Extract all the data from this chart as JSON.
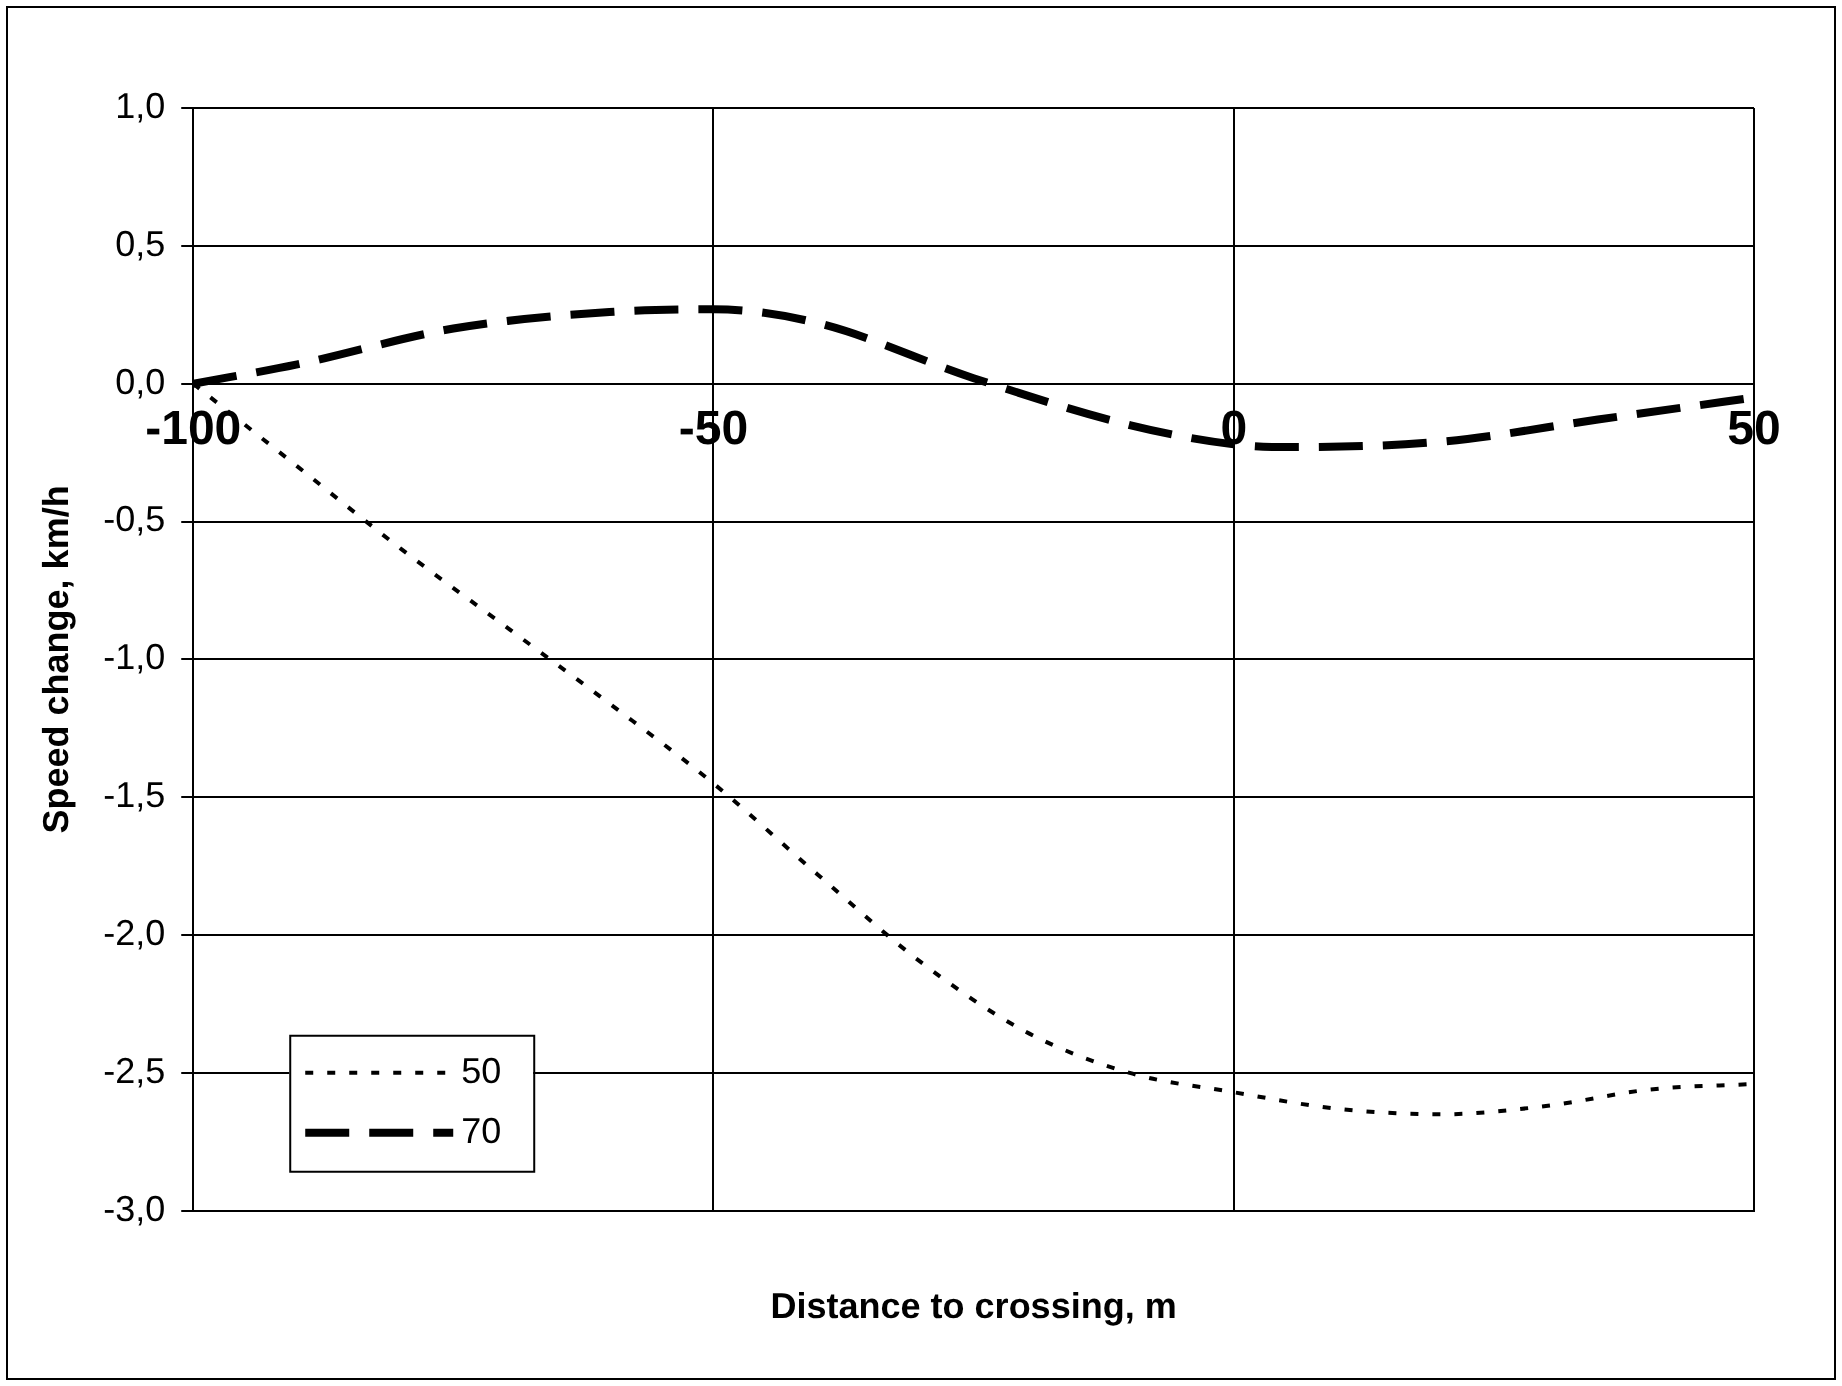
{
  "chart_data": {
    "type": "line",
    "xlabel": "Distance to crossing, m",
    "ylabel": "Speed change, km/h",
    "xlim": [
      -100,
      50
    ],
    "xticks": [
      -100,
      -50,
      0,
      50
    ],
    "ylim": [
      -3,
      1
    ],
    "yticks": [
      {
        "value": -3,
        "label": "-3,0"
      },
      {
        "value": -2.5,
        "label": "-2,5"
      },
      {
        "value": -2,
        "label": "-2,0"
      },
      {
        "value": -1.5,
        "label": "-1,5"
      },
      {
        "value": -1,
        "label": "-1,0"
      },
      {
        "value": -0.5,
        "label": "-0,5"
      },
      {
        "value": 0,
        "label": "0,0"
      },
      {
        "value": 0.5,
        "label": "0,5"
      },
      {
        "value": 1,
        "label": "1,0"
      }
    ],
    "grid": true,
    "legend": "bottom left",
    "marker": "none",
    "series": [
      {
        "name": "50",
        "color": "#000000",
        "line_style": "dotted",
        "x": [
          -100,
          -90,
          -80,
          -70,
          -60,
          -50,
          -40,
          -30,
          -20,
          -10,
          0,
          10,
          20,
          30,
          40,
          50
        ],
        "values": [
          0,
          -0.3,
          -0.6,
          -0.88,
          -1.16,
          -1.45,
          -1.78,
          -2.1,
          -2.35,
          -2.5,
          -2.57,
          -2.63,
          -2.65,
          -2.62,
          -2.56,
          -2.54
        ]
      },
      {
        "name": "70",
        "color": "#000000",
        "line_style": "dashed",
        "x": [
          -100,
          -90,
          -75,
          -60,
          -50,
          -40,
          -25,
          -10,
          0,
          5,
          20,
          35,
          50
        ],
        "values": [
          0,
          0.07,
          0.2,
          0.26,
          0.27,
          0.22,
          0.02,
          -0.15,
          -0.22,
          -0.23,
          -0.21,
          -0.13,
          -0.05
        ]
      }
    ]
  }
}
